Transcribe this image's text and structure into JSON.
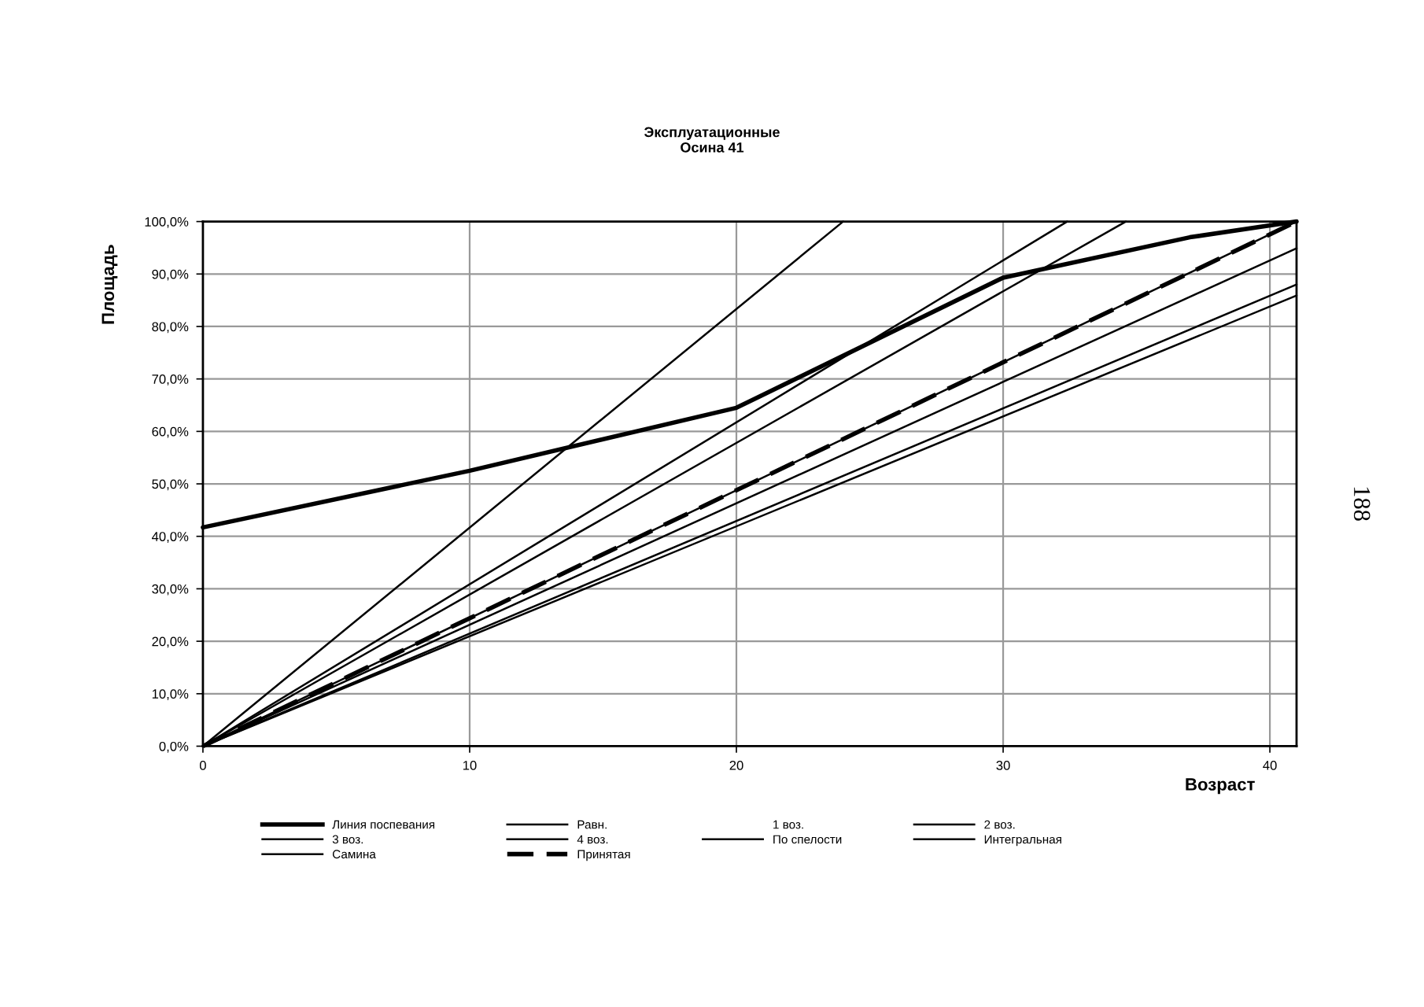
{
  "chart_data": {
    "type": "line",
    "title": "Эксплуатационные\nОсина 41",
    "xlabel": "Возраст",
    "ylabel": "Площадь",
    "xlim": [
      0,
      41
    ],
    "xticks": [
      0,
      10,
      20,
      30,
      40
    ],
    "ylim": [
      0,
      100
    ],
    "yticks": [
      {
        "value": 0,
        "label": "0,0%"
      },
      {
        "value": 10,
        "label": "10,0%"
      },
      {
        "value": 20,
        "label": "20,0%"
      },
      {
        "value": 30,
        "label": "30,0%"
      },
      {
        "value": 40,
        "label": "40,0%"
      },
      {
        "value": 50,
        "label": "50,0%"
      },
      {
        "value": 60,
        "label": "60,0%"
      },
      {
        "value": 70,
        "label": "70,0%"
      },
      {
        "value": 80,
        "label": "80,0%"
      },
      {
        "value": 90,
        "label": "90,0%"
      },
      {
        "value": 100,
        "label": "100,0%"
      }
    ],
    "grid": true,
    "legend": "bottom",
    "marker": "none",
    "series": [
      {
        "name": "Линия поспевания",
        "color": "#000000",
        "line_style": "solid",
        "x": [
          0,
          10,
          20,
          30,
          37,
          41
        ],
        "values": [
          41.7,
          52.5,
          64.5,
          89.3,
          97,
          100
        ]
      },
      {
        "name": "Равн.",
        "color": "#000000",
        "line_style": "solid",
        "x": [
          0,
          34.6
        ],
        "values": [
          0,
          100
        ]
      },
      {
        "name": "1 воз."
      },
      {
        "name": "2 воз.",
        "color": "#000000",
        "line_style": "solid",
        "x": [
          0,
          41
        ],
        "values": [
          0,
          94.9
        ]
      },
      {
        "name": "3 воз.",
        "color": "#000000",
        "line_style": "solid",
        "x": [
          0,
          41
        ],
        "values": [
          0,
          88
        ]
      },
      {
        "name": "4 воз.",
        "color": "#000000",
        "line_style": "solid",
        "x": [
          0,
          41
        ],
        "values": [
          0,
          85.9
        ]
      },
      {
        "name": "По спелости",
        "color": "#000000",
        "line_style": "solid",
        "x": [
          0,
          32.4
        ],
        "values": [
          0,
          100
        ]
      },
      {
        "name": "Интегральная",
        "color": "#000000",
        "line_style": "solid",
        "x": [
          0,
          41
        ],
        "values": [
          0,
          100
        ]
      },
      {
        "name": "Самина",
        "color": "#000000",
        "line_style": "solid",
        "x": [
          0,
          24
        ],
        "values": [
          0,
          100
        ]
      },
      {
        "name": "Принятая",
        "color": "#000000",
        "line_style": "dashed",
        "x": [
          0,
          41
        ],
        "values": [
          0,
          100
        ]
      }
    ],
    "annotations": [
      "188"
    ]
  }
}
